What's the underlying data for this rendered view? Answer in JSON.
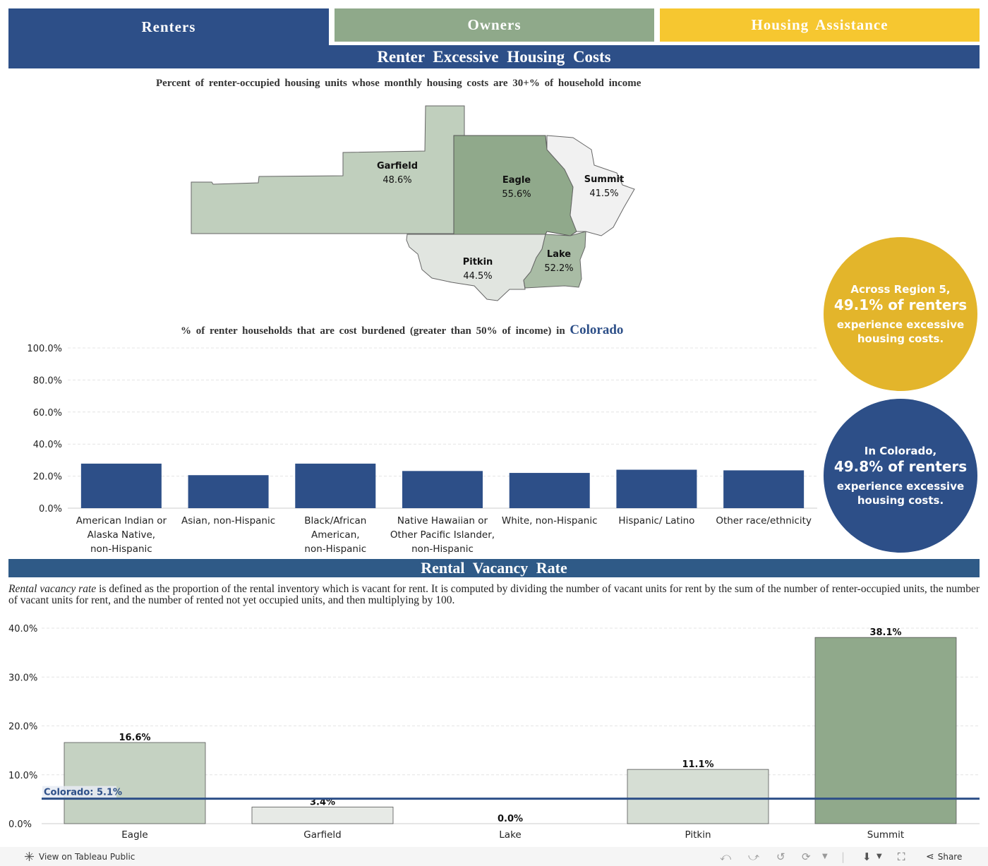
{
  "tabs": {
    "renters": "Renters",
    "owners": "Owners",
    "assistance": "Housing  Assistance"
  },
  "section1": {
    "title": "Renter  Excessive  Housing  Costs",
    "map_subtitle": "Percent  of  renter-occupied  housing  units  whose  monthly  housing  costs  are  30+%  of  household  income"
  },
  "map_regions": [
    {
      "name": "Garfield",
      "value": "48.6%",
      "color": "#c0cfbd"
    },
    {
      "name": "Eagle",
      "value": "55.6%",
      "color": "#90a98b"
    },
    {
      "name": "Summit",
      "value": "41.5%",
      "color": "#f1f1f1"
    },
    {
      "name": "Pitkin",
      "value": "44.5%",
      "color": "#e1e5e0"
    },
    {
      "name": "Lake",
      "value": "52.2%",
      "color": "#a9bca5"
    }
  ],
  "burden_chart": {
    "title_prefix": "%  of  renter  households  that  are  cost  burdened  (greater  than  50%  of  income)  in",
    "title_place": "Colorado"
  },
  "circles": {
    "region": {
      "line1": "Across Region 5,",
      "big": "49.1% of renters",
      "line2": "experience excessive",
      "line3": "housing costs."
    },
    "colorado": {
      "line1": "In Colorado,",
      "big": "49.8% of renters",
      "line2": "experience excessive",
      "line3": "housing costs."
    }
  },
  "section2": {
    "title": "Rental  Vacancy  Rate",
    "desc_term": "Rental vacancy rate",
    "desc_rest": " is defined as the proportion of the rental inventory which is vacant for rent. It is computed by dividing the number of vacant units for rent by the sum of the number of renter-occupied units, the number of vacant units for rent, and the number of rented not yet occupied units, and then multiplying by 100."
  },
  "reference_line": {
    "label": "Colorado: 5.1%",
    "value": 5.1
  },
  "footer": {
    "tableau_link": "View on Tableau Public",
    "share": "Share"
  },
  "chart_data": [
    {
      "type": "bar",
      "title": "%  of  renter  households  that  are  cost  burdened  (greater  than  50%  of  income)  in Colorado",
      "categories": [
        [
          "American Indian or",
          "Alaska Native,",
          "non-Hispanic"
        ],
        [
          "Asian, non-Hispanic"
        ],
        [
          "Black/African",
          "American,",
          "non-Hispanic"
        ],
        [
          "Native Hawaiian or",
          "Other Pacific Islander,",
          "non-Hispanic"
        ],
        [
          "White, non-Hispanic"
        ],
        [
          "Hispanic/ Latino"
        ],
        [
          "Other race/ethnicity"
        ]
      ],
      "values": [
        27.8,
        20.6,
        27.8,
        23.2,
        22.0,
        24.0,
        23.6
      ],
      "yticks": [
        "100.0%",
        "80.0%",
        "60.0%",
        "40.0%",
        "20.0%",
        "0.0%"
      ],
      "ylim": [
        0,
        100
      ],
      "color": "#2d4f88",
      "grid": true
    },
    {
      "type": "bar",
      "title": "Rental Vacancy Rate",
      "categories": [
        "Eagle",
        "Garfield",
        "Lake",
        "Pitkin",
        "Summit"
      ],
      "values": [
        16.6,
        3.4,
        0.0,
        11.1,
        38.1
      ],
      "labels": [
        "16.6%",
        "3.4%",
        "0.0%",
        "11.1%",
        "38.1%"
      ],
      "colors": [
        "#c5d2c2",
        "#e7eae6",
        "#eeeeee",
        "#d6ded4",
        "#90a98b"
      ],
      "yticks": [
        "40.0%",
        "30.0%",
        "20.0%",
        "10.0%",
        "0.0%"
      ],
      "ylim": [
        0,
        40
      ],
      "grid": true
    }
  ]
}
